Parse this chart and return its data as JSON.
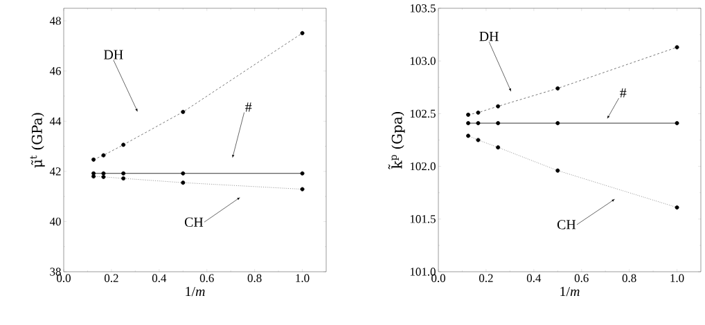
{
  "chart_data": [
    {
      "type": "line",
      "xlabel": "1/*m*",
      "ylabel": "μ̃$^{t}$ (GPa)",
      "marker": "circle",
      "grid": false,
      "x": [
        0.125,
        0.1667,
        0.25,
        0.5,
        1.0
      ],
      "series": [
        {
          "color": "#555555",
          "line_style": "dashed",
          "values": [
            42.47,
            42.64,
            43.06,
            44.37,
            47.51
          ]
        },
        {
          "color": "#000000",
          "line_style": "solid",
          "values": [
            41.92,
            41.92,
            41.92,
            41.92,
            41.92
          ]
        },
        {
          "color": "#555555",
          "line_style": "dotted",
          "values": [
            41.8,
            41.78,
            41.72,
            41.55,
            41.29
          ]
        }
      ],
      "xlim": [
        0,
        1.1
      ],
      "ylim": [
        38,
        48.5
      ],
      "xticks": [
        {
          "value": 0,
          "label": "0.0"
        },
        {
          "value": 0.2,
          "label": "0.2"
        },
        {
          "value": 0.4,
          "label": "0.4"
        },
        {
          "value": 0.6,
          "label": "0.6"
        },
        {
          "value": 0.8,
          "label": "0.8"
        },
        {
          "value": 1,
          "label": "1.0"
        }
      ],
      "yticks": [
        38,
        40,
        42,
        44,
        46,
        48
      ],
      "annotations": [
        "DH",
        "#",
        "CH"
      ]
    },
    {
      "type": "line",
      "xlabel": "1/*m*",
      "ylabel": "k̃$^{p}$ (Gpa)",
      "marker": "circle",
      "grid": false,
      "x": [
        0.125,
        0.1667,
        0.25,
        0.5,
        1.0
      ],
      "series": [
        {
          "color": "#555555",
          "line_style": "dashed",
          "values": [
            102.49,
            102.51,
            102.57,
            102.74,
            103.13
          ]
        },
        {
          "color": "#000000",
          "line_style": "solid",
          "values": [
            102.41,
            102.41,
            102.41,
            102.41,
            102.41
          ]
        },
        {
          "color": "#555555",
          "line_style": "dotted",
          "values": [
            102.29,
            102.25,
            102.18,
            101.96,
            101.61
          ]
        }
      ],
      "xlim": [
        0,
        1.1
      ],
      "ylim": [
        101.0,
        103.5
      ],
      "xticks": [
        {
          "value": 0,
          "label": "0.0"
        },
        {
          "value": 0.2,
          "label": "0.2"
        },
        {
          "value": 0.4,
          "label": "0.4"
        },
        {
          "value": 0.6,
          "label": "0.6"
        },
        {
          "value": 0.8,
          "label": "0.8"
        },
        {
          "value": 1,
          "label": "1.0"
        }
      ],
      "yticks": [
        {
          "value": 101,
          "label": "101.0"
        },
        {
          "value": 101.5,
          "label": "101.5"
        },
        {
          "value": 102,
          "label": "102.0"
        },
        {
          "value": 102.5,
          "label": "102.5"
        },
        {
          "value": 103,
          "label": "103.0"
        },
        {
          "value": 103.5,
          "label": "103.5"
        }
      ],
      "annotations": [
        "DH",
        "#",
        "CH"
      ]
    }
  ]
}
